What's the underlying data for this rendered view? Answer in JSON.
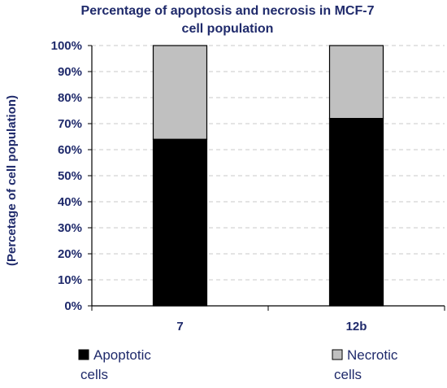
{
  "chart_data": {
    "type": "bar",
    "stacked": true,
    "title_lines": [
      "Percentage of apoptosis and necrosis in MCF-7",
      "cell population"
    ],
    "ylabel": "(Percetage of cell population)",
    "xlabel": "",
    "categories": [
      "7",
      "12b"
    ],
    "series": [
      {
        "name_lines": [
          "Apoptotic",
          "cells"
        ],
        "values": [
          64,
          72
        ],
        "color": "#000000"
      },
      {
        "name_lines": [
          "Necrotic",
          "cells"
        ],
        "values": [
          36,
          28
        ],
        "color": "#c0c0c0"
      }
    ],
    "ylim": [
      0,
      100
    ],
    "yticks": [
      "0%",
      "10%",
      "20%",
      "30%",
      "40%",
      "50%",
      "60%",
      "70%",
      "80%",
      "90%",
      "100%"
    ],
    "grid": true,
    "legend_position": "bottom"
  }
}
